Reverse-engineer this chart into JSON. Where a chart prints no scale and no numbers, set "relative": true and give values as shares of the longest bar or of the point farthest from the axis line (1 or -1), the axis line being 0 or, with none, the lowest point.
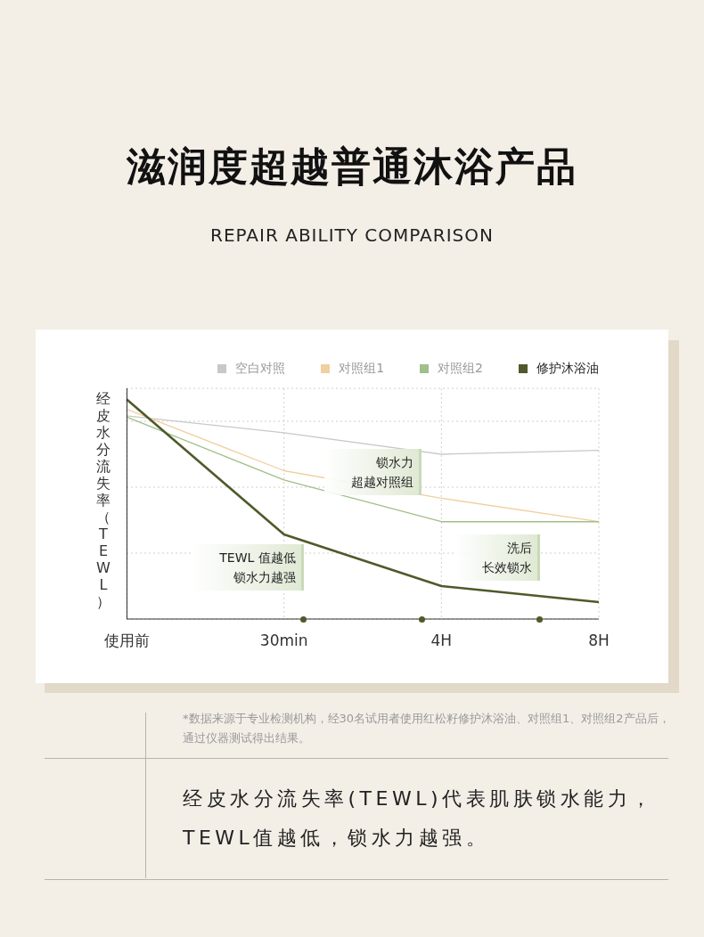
{
  "chart_data": {
    "type": "line",
    "title": "滋润度超越普通沐浴产品",
    "subtitle": "REPAIR ABILITY COMPARISON",
    "ylabel": "经皮水分流失率（TEWL）",
    "relative": true,
    "categories": [
      "使用前",
      "30min",
      "4H",
      "8H"
    ],
    "series": [
      {
        "name": "空白对照",
        "color": "#c8c8c8",
        "values": [
          0.925,
          0.848,
          0.75,
          0.768
        ]
      },
      {
        "name": "对照组1",
        "color": "#f2cf9e",
        "values": [
          0.955,
          0.675,
          0.55,
          0.443
        ]
      },
      {
        "name": "对照组2",
        "color": "#9fc088",
        "values": [
          0.92,
          0.633,
          0.443,
          0.443
        ]
      },
      {
        "name": "修护沐浴油",
        "color": "#4e5a2a",
        "values": [
          1,
          0.385,
          0.15,
          0.077
        ]
      }
    ],
    "annotations": [
      "锁水力",
      "超越对照组",
      "TEWL 值越低",
      "锁水力越强",
      "洗后",
      "长效锁水",
      "*数据来源于专业检测机构，经30名试用者使用红松籽修护沐浴油、对照组1、对照组2产品后，通过仪器测试得出结果。",
      "经皮水分流失率(TEWL)代表肌肤锁水能力，TEWL值越低，锁水力越强。"
    ],
    "grid": true,
    "legend": "top right",
    "marker": "none",
    "line_style": "solid"
  }
}
